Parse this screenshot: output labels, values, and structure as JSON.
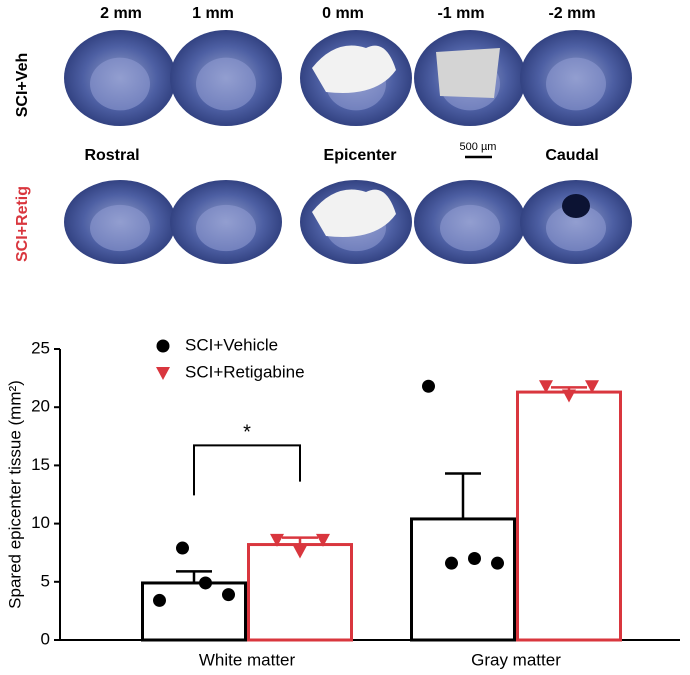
{
  "panel_a": {
    "column_labels": [
      "2 mm",
      "1 mm",
      "0 mm",
      "-1 mm",
      "-2 mm"
    ],
    "row_labels": [
      "SCI+Veh",
      "SCI+Retig"
    ],
    "region_labels": [
      "Rostral",
      "Epicenter",
      "Caudal"
    ],
    "scale_bar": "500 µm"
  },
  "chart_data": {
    "type": "bar",
    "y_label": "Spared epicenter tissue (mm²)",
    "categories": [
      "White matter",
      "Gray matter"
    ],
    "series": [
      {
        "name": "SCI+Vehicle",
        "color": "#000000",
        "marker": "circle",
        "values": [
          4.9,
          10.4
        ],
        "errors": [
          1.0,
          3.9
        ],
        "points": [
          [
            3.4,
            7.9,
            4.9,
            3.9
          ],
          [
            21.8,
            6.6,
            7.0,
            6.6
          ]
        ]
      },
      {
        "name": "SCI+Retigabine",
        "color": "#d9363e",
        "marker": "triangle",
        "values": [
          8.2,
          21.3
        ],
        "errors": [
          0.6,
          0.4
        ],
        "points": [
          [
            8.6,
            7.6,
            8.6
          ],
          [
            21.8,
            21.0,
            21.8
          ]
        ]
      }
    ],
    "significance": "*",
    "ylim": [
      0,
      25
    ],
    "yticks": [
      0,
      5,
      10,
      15,
      20,
      25
    ],
    "legend": "upper-left"
  }
}
